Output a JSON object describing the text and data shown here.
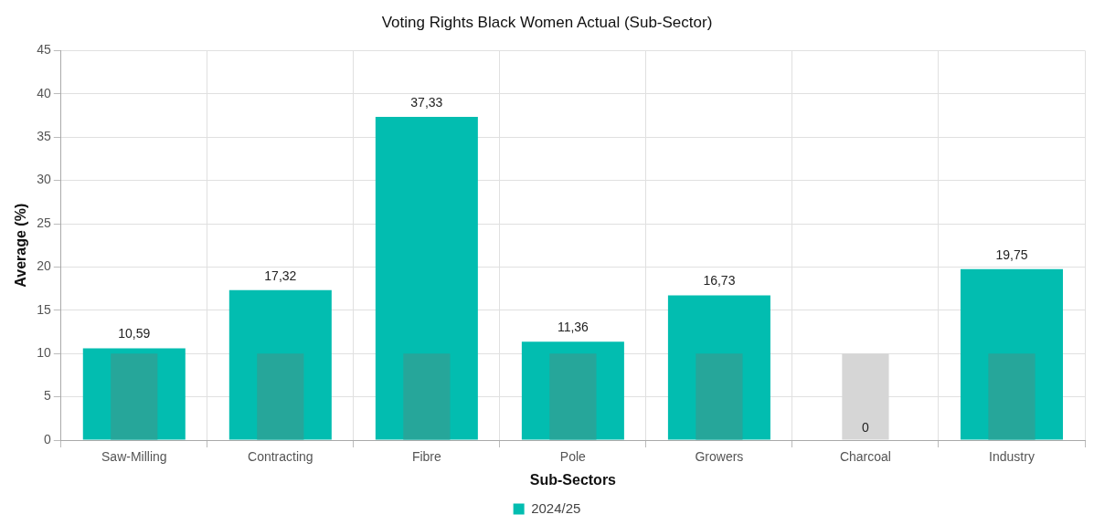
{
  "chart_data": {
    "type": "bar",
    "title": "Voting Rights Black Women Actual (Sub-Sector)",
    "xlabel": "Sub-Sectors",
    "ylabel": "Average (%)",
    "categories": [
      "Saw-Milling",
      "Contracting",
      "Fibre",
      "Pole",
      "Growers",
      "Charcoal",
      "Industry"
    ],
    "series": [
      {
        "name": "2024/25",
        "color": "#02bdb0",
        "values": [
          10.59,
          17.32,
          37.33,
          11.36,
          16.73,
          0,
          19.75
        ],
        "value_labels": [
          "10,59",
          "17,32",
          "37,33",
          "11,36",
          "16,73",
          "0",
          "19,75"
        ]
      },
      {
        "colors": [
          "#26a69a",
          "#26a69a",
          "#26a69a",
          "#26a69a",
          "#26a69a",
          "#d6d6d6",
          "#26a69a"
        ],
        "values": [
          10,
          10,
          10,
          10,
          10,
          10,
          10
        ]
      }
    ],
    "ylim": [
      0,
      45
    ],
    "yticks": [
      0,
      5,
      10,
      15,
      20,
      25,
      30,
      35,
      40,
      45
    ],
    "grid": true,
    "legend": "bottom"
  }
}
